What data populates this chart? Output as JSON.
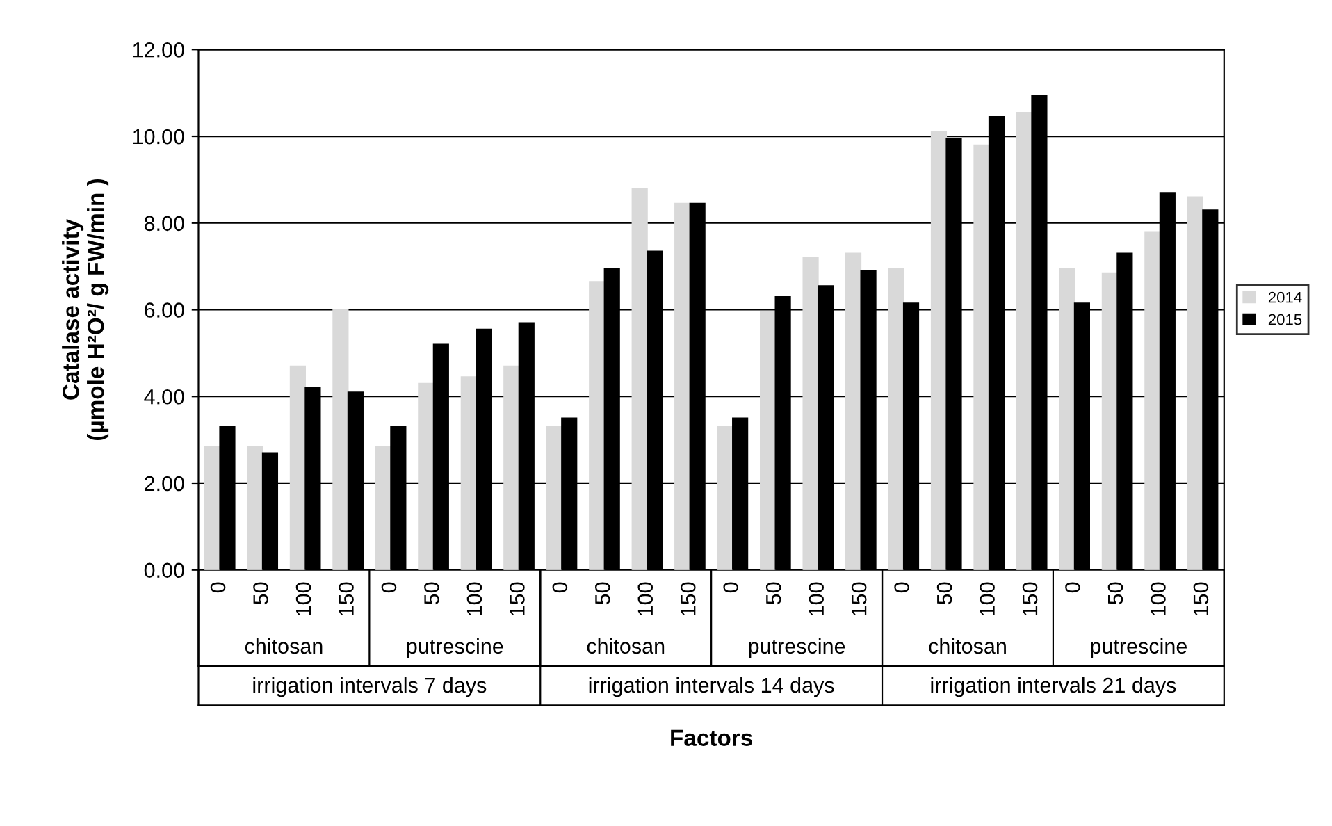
{
  "chart_data": {
    "type": "bar",
    "ylabel": "Catalase activity\n(µmole H²O²/ g FW/min )",
    "xlabel": "Factors",
    "categories": [
      "0",
      "50",
      "100",
      "150",
      "0",
      "50",
      "100",
      "150",
      "0",
      "50",
      "100",
      "150",
      "0",
      "50",
      "100",
      "150",
      "0",
      "50",
      "100",
      "150",
      "0",
      "50",
      "100",
      "150"
    ],
    "annotations": [
      "chitosan",
      "putrescine",
      "chitosan",
      "putrescine",
      "chitosan",
      "putrescine",
      "irrigation intervals 7 days",
      "irrigation intervals 14 days",
      "irrigation intervals 21 days"
    ],
    "series": [
      {
        "name": "2014",
        "color": "#d9d9d9",
        "values": [
          2.85,
          2.85,
          4.7,
          6.0,
          2.85,
          4.3,
          4.45,
          4.7,
          3.3,
          6.65,
          8.8,
          8.45,
          3.3,
          5.95,
          7.2,
          7.3,
          6.95,
          10.1,
          9.8,
          10.55,
          6.95,
          6.85,
          7.8,
          8.6
        ]
      },
      {
        "name": "2015",
        "color": "#000000",
        "values": [
          3.3,
          2.7,
          4.2,
          4.1,
          3.3,
          5.2,
          5.55,
          5.7,
          3.5,
          6.95,
          7.35,
          8.45,
          3.5,
          6.3,
          6.55,
          6.9,
          6.15,
          9.95,
          10.45,
          10.95,
          6.15,
          7.3,
          8.7,
          8.3
        ]
      }
    ],
    "ylim": [
      0,
      12
    ],
    "yticks": [
      {
        "value": 0,
        "label": "0.00"
      },
      {
        "value": 2,
        "label": "2.00"
      },
      {
        "value": 4,
        "label": "4.00"
      },
      {
        "value": 6,
        "label": "6.00"
      },
      {
        "value": 8,
        "label": "8.00"
      },
      {
        "value": 10,
        "label": "10.00"
      },
      {
        "value": 12,
        "label": "12.00"
      }
    ],
    "grid": "y",
    "legend": "right"
  }
}
